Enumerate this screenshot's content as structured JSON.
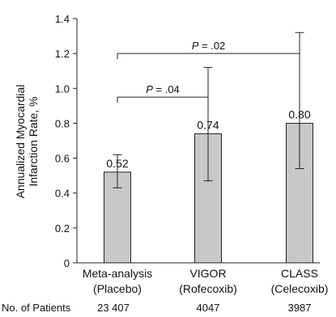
{
  "chart_data": {
    "type": "bar",
    "ylabel_lines": [
      "Annualized Myocardial",
      "Infarction Rate, %"
    ],
    "ylim": [
      0,
      1.4
    ],
    "yticks": [
      "0",
      "0.2",
      "0.4",
      "0.6",
      "0.8",
      "1.0",
      "1.2",
      "1.4"
    ],
    "categories": [
      {
        "line1": "Meta-analysis",
        "line2": "(Placebo)"
      },
      {
        "line1": "VIGOR",
        "line2": "(Rofecoxib)"
      },
      {
        "line1": "CLASS",
        "line2": "(Celecoxib)"
      }
    ],
    "values": [
      0.52,
      0.74,
      0.8
    ],
    "value_labels": [
      "0.52",
      "0.74",
      "0.80"
    ],
    "error_low": [
      0.43,
      0.47,
      0.54
    ],
    "error_high": [
      0.62,
      1.12,
      1.32
    ],
    "comparisons": [
      {
        "from": 0,
        "to": 1,
        "label": "P = .04",
        "y": 0.95
      },
      {
        "from": 0,
        "to": 2,
        "label": "P = .02",
        "y": 1.2
      }
    ],
    "patients_label": "No. of Patients",
    "patients": [
      "23 407",
      "4047",
      "3987"
    ],
    "colors": {
      "bar_fill": "#c8c8c8",
      "bar_stroke": "#222222"
    }
  }
}
